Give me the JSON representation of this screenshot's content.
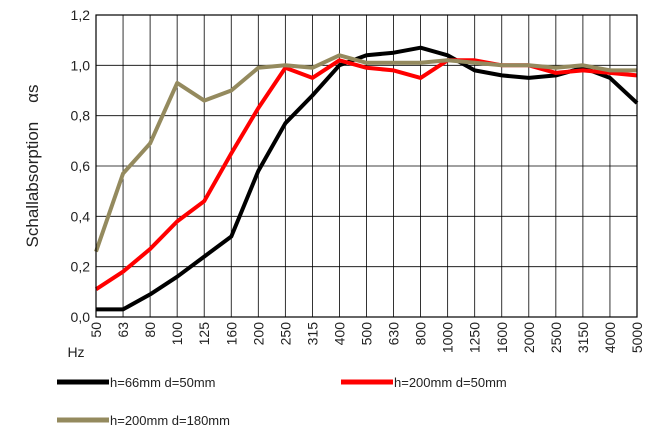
{
  "chart_data": {
    "type": "line",
    "ylabel": "Schallabsorption    αs",
    "xlabel": "Hz",
    "ylim": [
      0,
      1.2
    ],
    "y_ticks": [
      "0,0",
      "0,2",
      "0,4",
      "0,6",
      "0,8",
      "1,0",
      "1,2"
    ],
    "grid": true,
    "legend_position": "bottom",
    "categories": [
      "50",
      "63",
      "80",
      "100",
      "125",
      "160",
      "200",
      "250",
      "315",
      "400",
      "500",
      "630",
      "800",
      "1000",
      "1250",
      "1600",
      "2000",
      "2500",
      "3150",
      "4000",
      "5000"
    ],
    "series": [
      {
        "name": "h=66mm d=50mm",
        "color": "#000000",
        "values": [
          0.03,
          0.03,
          0.09,
          0.16,
          0.24,
          0.32,
          0.58,
          0.77,
          0.88,
          1.0,
          1.04,
          1.05,
          1.07,
          1.04,
          0.98,
          0.96,
          0.95,
          0.96,
          0.99,
          0.95,
          0.85
        ]
      },
      {
        "name": "h=200mm d=50mm",
        "color": "#ff0000",
        "values": [
          0.11,
          0.18,
          0.27,
          0.38,
          0.46,
          0.65,
          0.83,
          0.99,
          0.95,
          1.02,
          0.99,
          0.98,
          0.95,
          1.02,
          1.02,
          1.0,
          1.0,
          0.97,
          0.98,
          0.97,
          0.96
        ]
      },
      {
        "name": "h=200mm d=180mm",
        "color": "#948a5e",
        "values": [
          0.26,
          0.57,
          0.69,
          0.93,
          0.86,
          0.9,
          0.99,
          1.0,
          0.99,
          1.04,
          1.01,
          1.01,
          1.01,
          1.02,
          1.01,
          1.0,
          1.0,
          0.99,
          1.0,
          0.98,
          0.98
        ]
      }
    ]
  }
}
